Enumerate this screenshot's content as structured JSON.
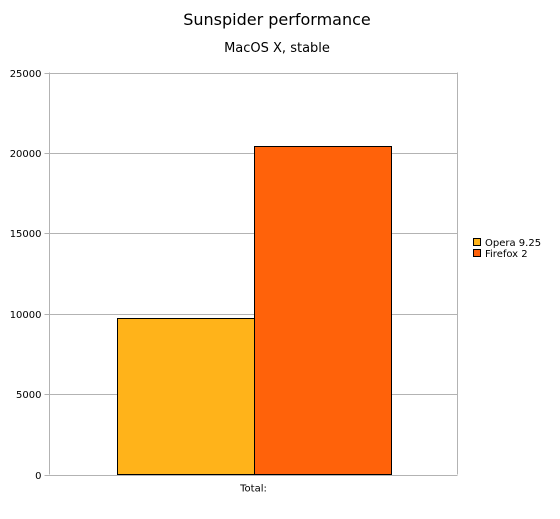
{
  "chart_data": {
    "type": "bar",
    "title": "Sunspider performance",
    "subtitle": "MacOS X, stable",
    "categories": [
      "Total:"
    ],
    "series": [
      {
        "name": "Opera 9.25",
        "values": [
          9750
        ],
        "color": "#ffb31a"
      },
      {
        "name": "Firefox 2",
        "values": [
          20450
        ],
        "color": "#ff620a"
      }
    ],
    "ylim": [
      0,
      25000
    ],
    "yticks": [
      0,
      5000,
      10000,
      15000,
      20000,
      25000
    ],
    "grid": true,
    "legend_position": "right"
  },
  "colors": {
    "grid": "#b3b3b3",
    "bar_outline": "#000000",
    "axis": "#b3b3b3"
  }
}
